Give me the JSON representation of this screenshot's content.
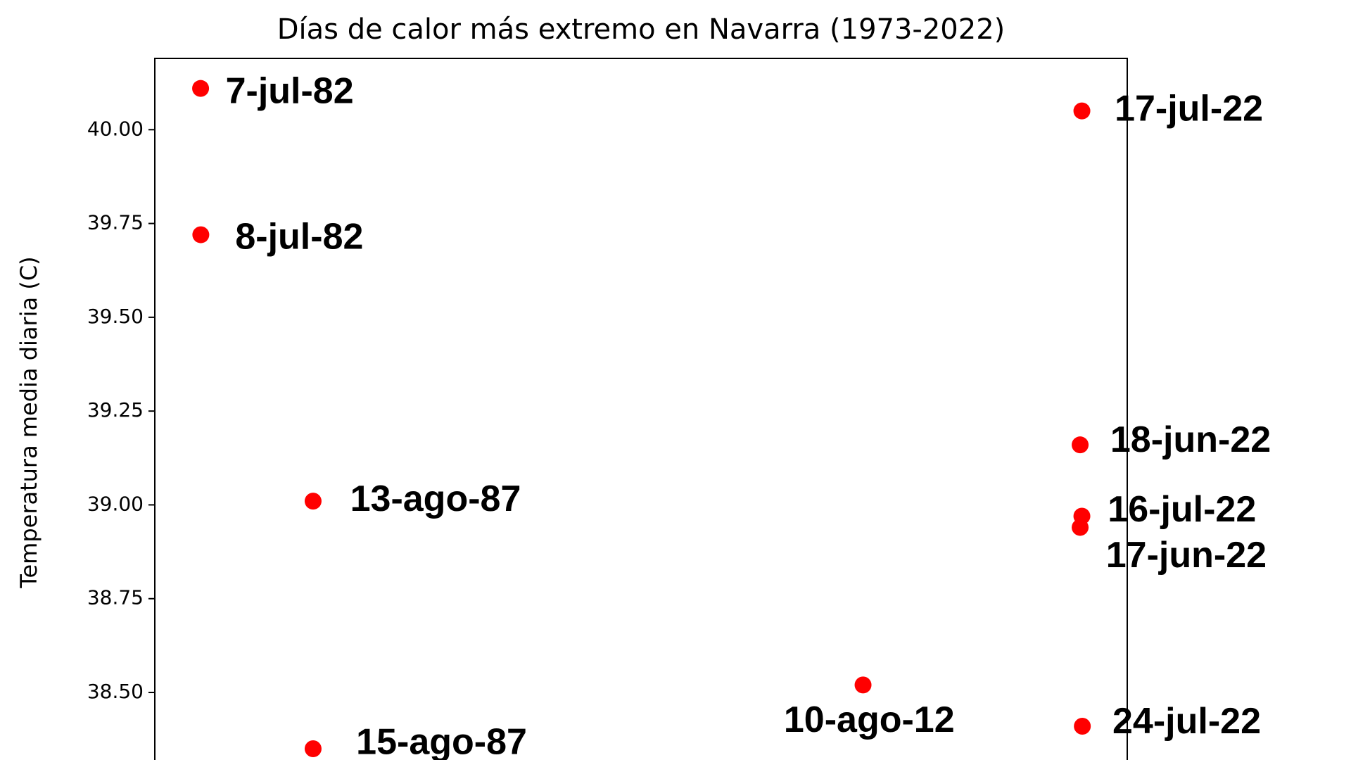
{
  "chart_data": {
    "type": "scatter",
    "title": "Días de calor más extremo en Navarra (1973-2022)",
    "y_label": "Temperatura media diaria (C)",
    "color": "#ff0000",
    "x": [
      1982.51,
      1982.52,
      1987.62,
      1987.62,
      2012.6,
      2022.54,
      2022.46,
      2022.54,
      2022.46,
      2022.56
    ],
    "values": [
      40.11,
      39.72,
      39.01,
      38.35,
      38.52,
      40.05,
      39.16,
      38.97,
      38.94,
      38.41
    ],
    "value_labels": [
      "7-jul-82",
      "8-jul-82",
      "13-ago-87",
      "15-ago-87",
      "10-ago-12",
      "17-jul-22",
      "18-jun-22",
      "16-jul-22",
      "17-jun-22",
      "24-jul-22"
    ],
    "xlim": [
      1980.43,
      2024.6
    ],
    "ylim": [
      38.32,
      40.19
    ],
    "yticks": [
      {
        "value": 38.5,
        "label": "38.50"
      },
      {
        "value": 38.75,
        "label": "38.75"
      },
      {
        "value": 39,
        "label": "39.00"
      },
      {
        "value": 39.25,
        "label": "39.25"
      },
      {
        "value": 39.5,
        "label": "39.50"
      },
      {
        "value": 39.75,
        "label": "39.75"
      },
      {
        "value": 40,
        "label": "40.00"
      }
    ]
  }
}
